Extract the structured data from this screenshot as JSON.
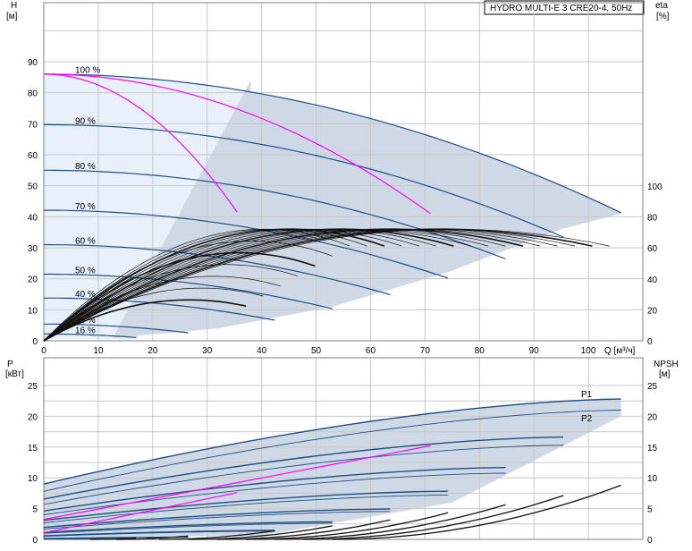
{
  "chart_data": [
    {
      "type": "line",
      "title": "HYDRO MULTI-E 3 CRE20-4, 50Hz",
      "xlabel": "Q [м³/ч]",
      "ylabel_left": "H",
      "ylabel_left_unit": "[м]",
      "ylabel_right": "eta",
      "ylabel_right_unit": "[%]",
      "xlim": [
        0,
        110
      ],
      "ylim_left": [
        0,
        100
      ],
      "ylim_right": [
        0,
        200
      ],
      "x_ticks": [
        0,
        10,
        20,
        30,
        40,
        50,
        60,
        70,
        80,
        90,
        100
      ],
      "y_left_ticks": [
        0,
        10,
        20,
        30,
        40,
        50,
        60,
        70,
        80,
        90
      ],
      "y_right_ticks": [
        0,
        20,
        40,
        60,
        80,
        100
      ],
      "speed_curves": [
        {
          "label": "100 %",
          "H0": 86,
          "Qmax": 106
        },
        {
          "label": "90 %",
          "H0": 69.7,
          "Qmax": 95.4
        },
        {
          "label": "80 %",
          "H0": 55,
          "Qmax": 84.8
        },
        {
          "label": "70 %",
          "H0": 42.1,
          "Qmax": 74.2
        },
        {
          "label": "60 %",
          "H0": 31,
          "Qmax": 63.6
        },
        {
          "label": "50 %",
          "H0": 21.5,
          "Qmax": 53
        },
        {
          "label": "40 %",
          "H0": 13.8,
          "Qmax": 42.4
        },
        {
          "label": "25 %",
          "H0": 5.4,
          "Qmax": 26.5
        },
        {
          "label": "16 %",
          "H0": 2.2,
          "Qmax": 17
        }
      ],
      "limit_curves": [
        {
          "name": "min-flow limit",
          "x": [
            0,
            35.5
          ],
          "y": [
            86,
            41.5
          ]
        },
        {
          "name": "max-eff limit",
          "x": [
            0,
            71
          ],
          "y": [
            86,
            41
          ]
        }
      ]
    },
    {
      "type": "line",
      "ylabel_left": "P",
      "ylabel_left_unit": "[кВт]",
      "ylabel_right": "NPSH",
      "ylabel_right_unit": "[м]",
      "xlim": [
        0,
        110
      ],
      "ylim_left": [
        0,
        25
      ],
      "ylim_right": [
        0,
        25
      ],
      "y_left_ticks": [
        0,
        5,
        10,
        15,
        20,
        25
      ],
      "y_right_ticks": [
        0,
        5,
        10,
        15,
        20,
        25
      ],
      "series_labels": [
        "P1",
        "P2"
      ],
      "P1_at_100": {
        "x": [
          0,
          106
        ],
        "y": [
          9,
          22.8
        ]
      },
      "P2_at_100": {
        "x": [
          0,
          106
        ],
        "y": [
          7.8,
          21
        ]
      }
    }
  ]
}
